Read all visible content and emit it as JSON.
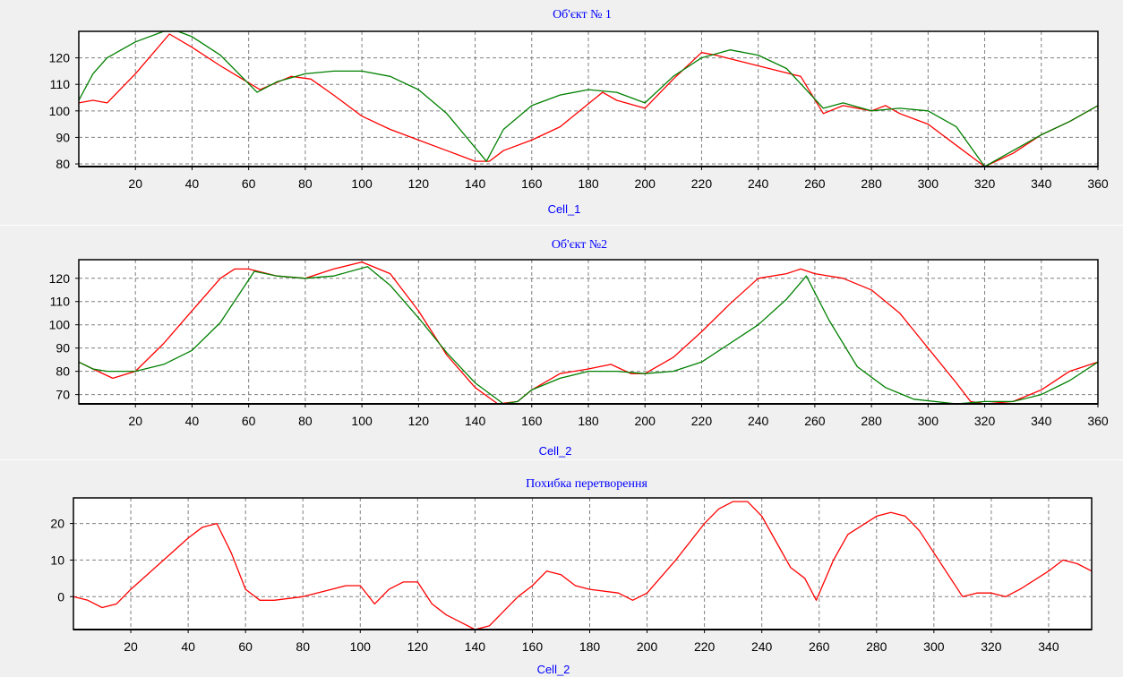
{
  "chart_data": [
    {
      "type": "line",
      "title": "Об'єкт № 1",
      "xlabel": "Cell_1",
      "ylabel": "",
      "xlim": [
        0,
        360
      ],
      "ylim": [
        79,
        130
      ],
      "xticks": [
        20,
        40,
        60,
        80,
        100,
        120,
        140,
        160,
        180,
        200,
        220,
        240,
        260,
        280,
        300,
        320,
        340,
        360
      ],
      "yticks": [
        80,
        90,
        100,
        110,
        120
      ],
      "grid": true,
      "series": [
        {
          "color": "#ff0000",
          "x": [
            0,
            5,
            10,
            20,
            32,
            40,
            50,
            64,
            75,
            82,
            90,
            100,
            110,
            120,
            130,
            140,
            145,
            150,
            160,
            170,
            185,
            190,
            200,
            210,
            220,
            225,
            240,
            255,
            263,
            270,
            280,
            285,
            290,
            300,
            310,
            320,
            330,
            340,
            350,
            360
          ],
          "y": [
            103,
            104,
            103,
            114,
            129,
            124,
            117,
            108,
            113,
            112,
            106,
            98,
            93,
            89,
            85,
            81,
            81,
            85,
            89,
            94,
            107,
            104,
            101,
            112,
            122,
            121,
            117,
            113,
            99,
            102,
            100,
            102,
            99,
            95,
            87,
            79,
            84,
            91,
            96,
            102
          ]
        },
        {
          "color": "#008000",
          "x": [
            0,
            5,
            10,
            20,
            30,
            35,
            40,
            50,
            63,
            70,
            80,
            90,
            100,
            110,
            120,
            130,
            144,
            150,
            160,
            170,
            180,
            190,
            200,
            210,
            220,
            230,
            240,
            250,
            263,
            270,
            280,
            290,
            300,
            310,
            320,
            330,
            340,
            350,
            360
          ],
          "y": [
            104,
            114,
            120,
            126,
            130,
            130,
            128,
            121,
            107,
            111,
            114,
            115,
            115,
            113,
            108,
            99,
            81,
            93,
            102,
            106,
            108,
            107,
            103,
            113,
            120,
            123,
            121,
            116,
            101,
            103,
            100,
            101,
            100,
            94,
            79,
            85,
            91,
            96,
            102
          ]
        }
      ]
    },
    {
      "type": "line",
      "title": "Об'єкт №2",
      "xlabel": "Cell_2",
      "ylabel": "",
      "xlim": [
        0,
        360
      ],
      "ylim": [
        66,
        128
      ],
      "xticks": [
        20,
        40,
        60,
        80,
        100,
        120,
        140,
        160,
        180,
        200,
        220,
        240,
        260,
        280,
        300,
        320,
        340,
        360
      ],
      "yticks": [
        70,
        80,
        90,
        100,
        110,
        120
      ],
      "grid": true,
      "series": [
        {
          "color": "#ff0000",
          "x": [
            0,
            5,
            12,
            20,
            30,
            40,
            50,
            55,
            60,
            70,
            80,
            90,
            100,
            110,
            120,
            130,
            140,
            148,
            155,
            160,
            170,
            180,
            188,
            195,
            200,
            210,
            220,
            230,
            240,
            250,
            255,
            260,
            270,
            280,
            290,
            300,
            310,
            315,
            320,
            330,
            340,
            350,
            360
          ],
          "y": [
            84,
            81,
            77,
            80,
            92,
            106,
            120,
            124,
            124,
            121,
            120,
            124,
            127,
            122,
            106,
            87,
            73,
            66,
            67,
            72,
            79,
            81,
            83,
            79,
            79,
            86,
            97,
            109,
            120,
            122,
            124,
            122,
            120,
            115,
            105,
            90,
            75,
            67,
            66,
            67,
            72,
            80,
            84
          ]
        },
        {
          "color": "#008000",
          "x": [
            0,
            5,
            10,
            20,
            30,
            40,
            50,
            62,
            70,
            80,
            90,
            102,
            110,
            120,
            130,
            140,
            150,
            155,
            160,
            170,
            180,
            190,
            200,
            210,
            220,
            230,
            240,
            250,
            257,
            265,
            275,
            285,
            295,
            310,
            320,
            330,
            340,
            350,
            360
          ],
          "y": [
            84,
            81,
            80,
            80,
            83,
            89,
            101,
            123,
            121,
            120,
            121,
            125,
            117,
            103,
            88,
            75,
            66,
            67,
            72,
            77,
            80,
            80,
            79,
            80,
            84,
            92,
            100,
            111,
            121,
            102,
            82,
            73,
            68,
            66,
            67,
            67,
            70,
            76,
            84
          ]
        }
      ]
    },
    {
      "type": "line",
      "title": "Похибка перетворення",
      "xlabel": "Cell_2",
      "ylabel": "",
      "xlim": [
        0,
        355
      ],
      "ylim": [
        -9,
        27
      ],
      "xticks": [
        20,
        40,
        60,
        80,
        100,
        120,
        140,
        160,
        180,
        200,
        220,
        240,
        260,
        280,
        300,
        320,
        340
      ],
      "yticks": [
        0,
        10,
        20
      ],
      "grid": true,
      "series": [
        {
          "color": "#ff0000",
          "x": [
            0,
            5,
            10,
            15,
            20,
            30,
            40,
            45,
            50,
            55,
            60,
            65,
            70,
            80,
            90,
            95,
            100,
            105,
            110,
            115,
            120,
            125,
            130,
            135,
            140,
            145,
            150,
            155,
            160,
            165,
            170,
            175,
            180,
            190,
            195,
            200,
            210,
            220,
            225,
            230,
            235,
            240,
            245,
            250,
            255,
            259,
            265,
            270,
            280,
            285,
            290,
            295,
            300,
            310,
            315,
            320,
            325,
            330,
            340,
            345,
            350,
            355
          ],
          "y": [
            0,
            -1,
            -3,
            -2,
            2,
            9,
            16,
            19,
            20,
            12,
            2,
            -1,
            -1,
            0,
            2,
            3,
            3,
            -2,
            2,
            4,
            4,
            -2,
            -5,
            -7,
            -9,
            -8,
            -4,
            0,
            3,
            7,
            6,
            3,
            2,
            1,
            -1,
            1,
            10,
            20,
            24,
            26,
            26,
            22,
            15,
            8,
            5,
            -1,
            10,
            17,
            22,
            23,
            22,
            18,
            12,
            0,
            1,
            1,
            0,
            2,
            7,
            10,
            9,
            7
          ]
        }
      ]
    }
  ]
}
